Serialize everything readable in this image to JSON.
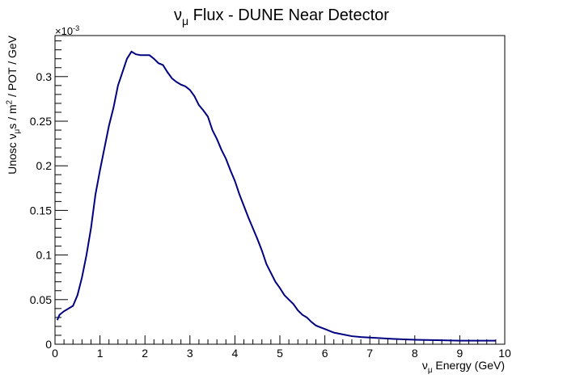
{
  "chart_data": {
    "type": "line",
    "title_parts": [
      {
        "text": "ν"
      },
      {
        "text": "μ",
        "shift": "sub"
      },
      {
        "text": " Flux - DUNE Near Detector"
      }
    ],
    "xlabel_parts": [
      {
        "text": "ν"
      },
      {
        "text": "μ",
        "shift": "sub"
      },
      {
        "text": " Energy (GeV)"
      }
    ],
    "ylabel_parts": [
      {
        "text": "Unosc ν"
      },
      {
        "text": "μ",
        "shift": "sub"
      },
      {
        "text": "s / m"
      },
      {
        "text": "2",
        "shift": "sup"
      },
      {
        "text": " / POT / GeV"
      }
    ],
    "y_multiplier_parts": [
      {
        "text": "×10"
      },
      {
        "text": "-3",
        "shift": "sup"
      }
    ],
    "x": [
      0.05,
      0.1,
      0.2,
      0.3,
      0.4,
      0.5,
      0.6,
      0.7,
      0.8,
      0.9,
      1.0,
      1.1,
      1.2,
      1.3,
      1.4,
      1.5,
      1.6,
      1.7,
      1.8,
      1.9,
      2.0,
      2.1,
      2.2,
      2.3,
      2.4,
      2.5,
      2.6,
      2.7,
      2.8,
      2.9,
      3.0,
      3.1,
      3.2,
      3.3,
      3.4,
      3.5,
      3.6,
      3.7,
      3.8,
      3.9,
      4.0,
      4.1,
      4.2,
      4.3,
      4.4,
      4.5,
      4.6,
      4.7,
      4.8,
      4.9,
      5.0,
      5.1,
      5.2,
      5.3,
      5.4,
      5.5,
      5.6,
      5.7,
      5.8,
      5.9,
      6.0,
      6.2,
      6.4,
      6.6,
      6.8,
      7.0,
      7.5,
      8.0,
      8.5,
      9.0,
      9.5,
      9.8
    ],
    "series": [
      {
        "color": "#000080",
        "values": [
          0.027,
          0.033,
          0.037,
          0.04,
          0.043,
          0.055,
          0.075,
          0.1,
          0.13,
          0.168,
          0.195,
          0.22,
          0.245,
          0.265,
          0.29,
          0.305,
          0.32,
          0.328,
          0.325,
          0.324,
          0.324,
          0.324,
          0.32,
          0.315,
          0.313,
          0.305,
          0.298,
          0.294,
          0.291,
          0.289,
          0.285,
          0.278,
          0.268,
          0.262,
          0.255,
          0.24,
          0.23,
          0.218,
          0.208,
          0.195,
          0.183,
          0.168,
          0.155,
          0.142,
          0.13,
          0.118,
          0.105,
          0.09,
          0.08,
          0.07,
          0.063,
          0.055,
          0.05,
          0.045,
          0.038,
          0.033,
          0.03,
          0.025,
          0.021,
          0.019,
          0.017,
          0.013,
          0.011,
          0.009,
          0.008,
          0.0075,
          0.006,
          0.005,
          0.0045,
          0.004,
          0.004,
          0.004
        ]
      }
    ],
    "xlim": [
      0,
      10
    ],
    "ylim": [
      0,
      0.346
    ],
    "xticks": [
      0,
      1,
      2,
      3,
      4,
      5,
      6,
      7,
      8,
      9,
      10
    ],
    "yticks": [
      0,
      0.05,
      0.1,
      0.15,
      0.2,
      0.25,
      0.3
    ]
  }
}
